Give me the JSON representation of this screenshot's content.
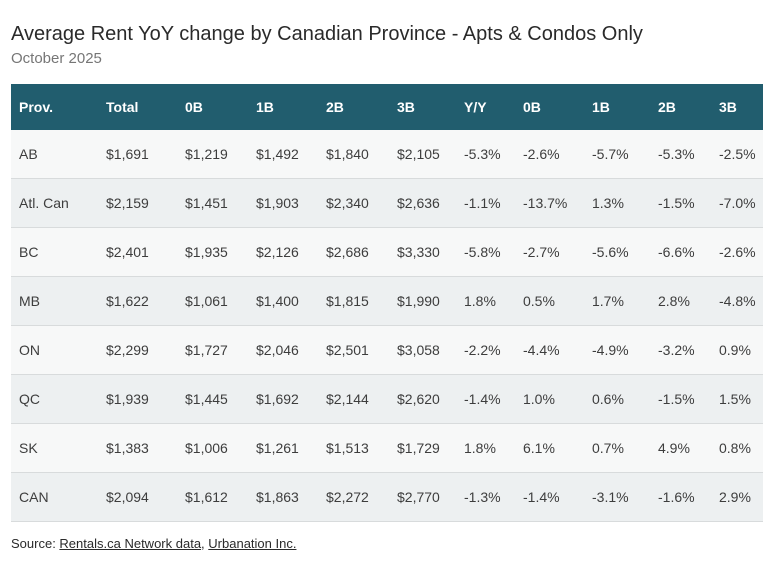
{
  "title": "Average Rent YoY change by Canadian Province - Apts & Condos Only",
  "subtitle": "October 2025",
  "colors": {
    "header_bg": "#215d6e",
    "header_text": "#ffffff",
    "row_odd": "#f7f8f8",
    "row_even": "#edf0f1",
    "divider": "#d8dbdc",
    "cell_text": "#3d3d3d",
    "title_text": "#2a2a2a",
    "subtitle_text": "#767676",
    "footer_text": "#2a2a2a"
  },
  "chart_data": {
    "type": "table",
    "title": "Average Rent YoY change by Canadian Province - Apts & Condos Only",
    "subtitle": "October 2025",
    "columns": [
      "Prov.",
      "Total",
      "0B",
      "1B",
      "2B",
      "3B",
      "Y/Y",
      "0B",
      "1B",
      "2B",
      "3B"
    ],
    "rows": [
      [
        "AB",
        "$1,691",
        "$1,219",
        "$1,492",
        "$1,840",
        "$2,105",
        "-5.3%",
        "-2.6%",
        "-5.7%",
        "-5.3%",
        "-2.5%"
      ],
      [
        "Atl. Can",
        "$2,159",
        "$1,451",
        "$1,903",
        "$2,340",
        "$2,636",
        "-1.1%",
        "-13.7%",
        "1.3%",
        "-1.5%",
        "-7.0%"
      ],
      [
        "BC",
        "$2,401",
        "$1,935",
        "$2,126",
        "$2,686",
        "$3,330",
        "-5.8%",
        "-2.7%",
        "-5.6%",
        "-6.6%",
        "-2.6%"
      ],
      [
        "MB",
        "$1,622",
        "$1,061",
        "$1,400",
        "$1,815",
        "$1,990",
        "1.8%",
        "0.5%",
        "1.7%",
        "2.8%",
        "-4.8%"
      ],
      [
        "ON",
        "$2,299",
        "$1,727",
        "$2,046",
        "$2,501",
        "$3,058",
        "-2.2%",
        "-4.4%",
        "-4.9%",
        "-3.2%",
        "0.9%"
      ],
      [
        "QC",
        "$1,939",
        "$1,445",
        "$1,692",
        "$2,144",
        "$2,620",
        "-1.4%",
        "1.0%",
        "0.6%",
        "-1.5%",
        "1.5%"
      ],
      [
        "SK",
        "$1,383",
        "$1,006",
        "$1,261",
        "$1,513",
        "$1,729",
        "1.8%",
        "6.1%",
        "0.7%",
        "4.9%",
        "0.8%"
      ],
      [
        "CAN",
        "$2,094",
        "$1,612",
        "$1,863",
        "$2,272",
        "$2,770",
        "-1.3%",
        "-1.4%",
        "-3.1%",
        "-1.6%",
        "2.9%"
      ]
    ]
  },
  "footer": {
    "prefix": "Source: ",
    "link1": "Rentals.ca Network data",
    "separator": ", ",
    "link2": "Urbanation Inc."
  }
}
